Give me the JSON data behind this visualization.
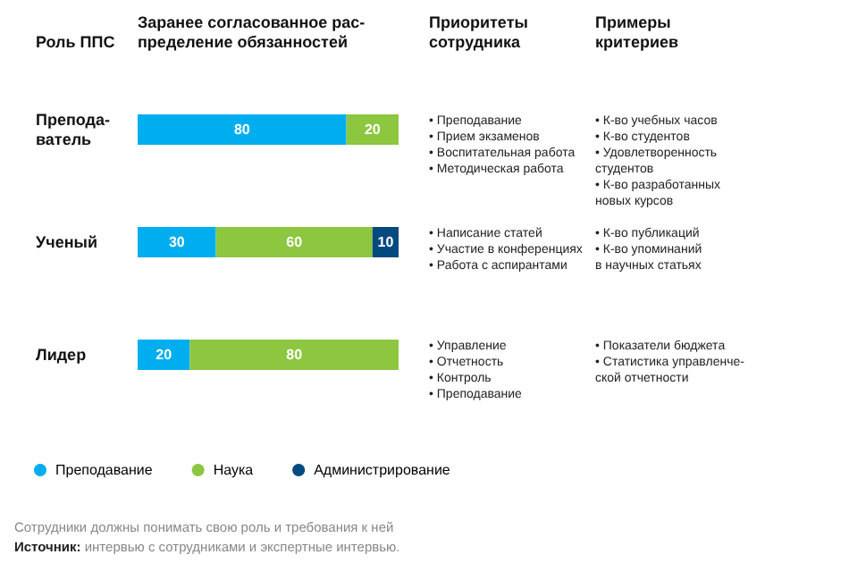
{
  "chart_data": {
    "type": "bar",
    "orientation": "horizontal",
    "stacked": true,
    "data_labels": true,
    "xlabel": "Заранее согласованное рас-\nпределение обязанностей",
    "ylabel": "Роль ППС",
    "categories": [
      "Препода-\nватель",
      "Ученый",
      "Лидер"
    ],
    "series": [
      {
        "name": "Преподавание",
        "color": "#00aeef",
        "values": [
          80,
          30,
          20
        ]
      },
      {
        "name": "Наука",
        "color": "#8dc63f",
        "values": [
          20,
          60,
          80
        ]
      },
      {
        "name": "Администрирование",
        "color": "#004a80",
        "values": [
          null,
          10,
          null
        ]
      }
    ],
    "xlim": [
      0,
      100
    ],
    "tick_labels": "y",
    "legend": "bottom left",
    "annotations": [
      "Приоритеты\nсотрудника",
      "Примеры\nкритериев",
      "Сотрудники должны понимать свою роль и требования к ней",
      "Источник: интервью с сотрудниками и экспертные интервью.",
      "• Преподавание\n• Прием экзаменов\n• Воспитательная работа\n• Методическая работа",
      "• К-во учебных часов\n• К-во студентов\n• Удовлетворенность\nстудентов\n• К-во разработанных\nновых курсов",
      "• Написание статей\n• Участие в конференциях\n• Работа с аспирантами",
      "• К-во публикаций\n• К-во упоминаний\nв научных статьях",
      "• Управление\n• Отчетность\n• Контроль\n• Преподавание",
      "• Показатели бюджета\n• Статистика управленче-\nской отчетности"
    ]
  }
}
